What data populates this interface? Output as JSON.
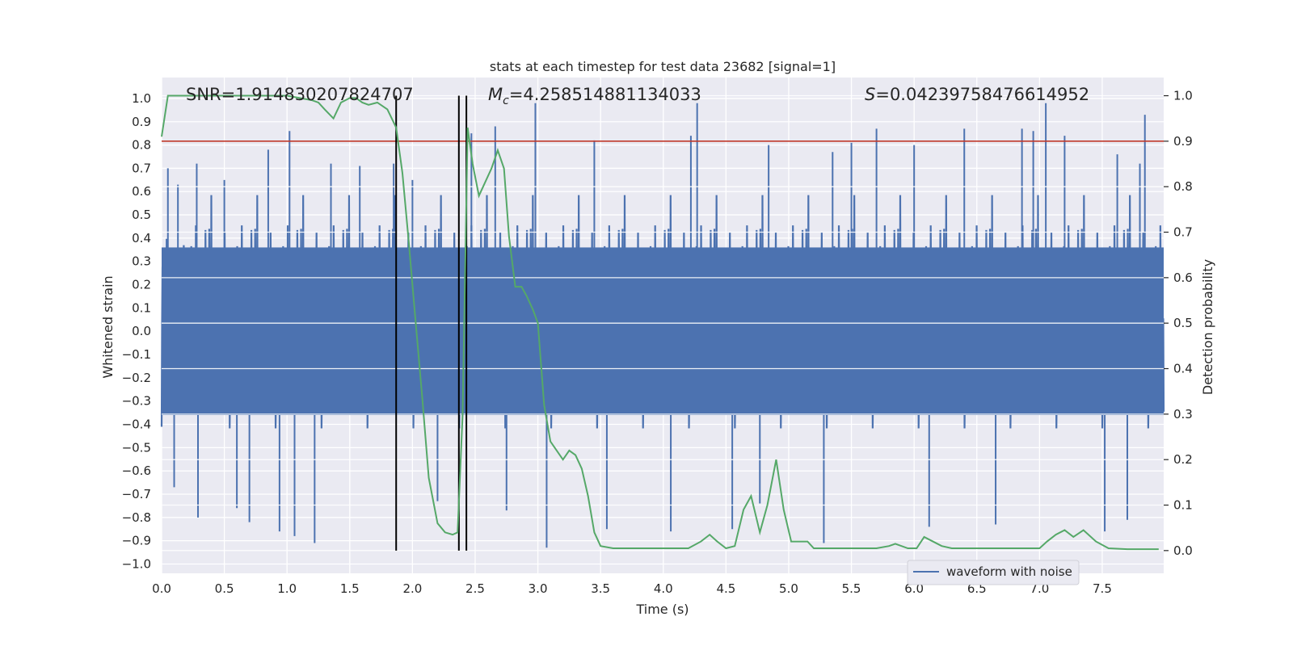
{
  "chart_data": {
    "type": "line",
    "title": "stats at each timestep for test data 23682 [signal=1]",
    "xlabel": "Time (s)",
    "ylabel_left": "Whitened strain",
    "ylabel_right": "Detection probability",
    "xlim": [
      0.0,
      7.99
    ],
    "ylim_left": [
      -1.04,
      1.09
    ],
    "ylim_right": [
      -0.05,
      1.04
    ],
    "x_ticks": [
      0.0,
      0.5,
      1.0,
      1.5,
      2.0,
      2.5,
      3.0,
      3.5,
      4.0,
      4.5,
      5.0,
      5.5,
      6.0,
      6.5,
      7.0,
      7.5
    ],
    "x_tick_labels": [
      "0.0",
      "0.5",
      "1.0",
      "1.5",
      "2.0",
      "2.5",
      "3.0",
      "3.5",
      "4.0",
      "4.5",
      "5.0",
      "5.5",
      "6.0",
      "6.5",
      "7.0",
      "7.5"
    ],
    "y_left_ticks": [
      -1.0,
      -0.9,
      -0.8,
      -0.7,
      -0.6,
      -0.5,
      -0.4,
      -0.3,
      -0.2,
      -0.1,
      0.0,
      0.1,
      0.2,
      0.3,
      0.4,
      0.5,
      0.6,
      0.7,
      0.8,
      0.9,
      1.0
    ],
    "y_left_tick_labels": [
      "−1.0",
      "−0.9",
      "−0.8",
      "−0.7",
      "−0.6",
      "−0.5",
      "−0.4",
      "−0.3",
      "−0.2",
      "−0.1",
      "0.0",
      "0.1",
      "0.2",
      "0.3",
      "0.4",
      "0.5",
      "0.6",
      "0.7",
      "0.8",
      "0.9",
      "1.0"
    ],
    "y_right_ticks": [
      0.0,
      0.1,
      0.2,
      0.3,
      0.4,
      0.5,
      0.6,
      0.7,
      0.8,
      0.9,
      1.0
    ],
    "y_right_tick_labels": [
      "0.0",
      "0.1",
      "0.2",
      "0.3",
      "0.4",
      "0.5",
      "0.6",
      "0.7",
      "0.8",
      "0.9",
      "1.0"
    ],
    "grid": true,
    "legend": {
      "entries": [
        "waveform with noise"
      ],
      "placement": "lower-right"
    },
    "annotations": {
      "snr": {
        "label": "SNR=",
        "value": "1.914830207824707"
      },
      "mc": {
        "symbol": "M",
        "subscript": "c",
        "value": "=4.258514881134033"
      },
      "s": {
        "symbol": "S",
        "value": "=0.04239758476614952"
      }
    },
    "threshold": {
      "axis": "right",
      "value": 0.9,
      "color": "#c0392b"
    },
    "vertical_lines": [
      1.87,
      2.37,
      2.43
    ],
    "waveform": {
      "name": "waveform with noise",
      "color": "#4c72b0",
      "axis": "left",
      "band_sigma": 0.2,
      "peaks": [
        [
          0.05,
          0.7
        ],
        [
          0.1,
          -0.67
        ],
        [
          0.13,
          0.63
        ],
        [
          0.28,
          0.72
        ],
        [
          0.29,
          -0.8
        ],
        [
          0.5,
          0.65
        ],
        [
          0.6,
          -0.76
        ],
        [
          0.7,
          -0.82
        ],
        [
          0.85,
          0.78
        ],
        [
          0.94,
          -0.86
        ],
        [
          1.02,
          0.86
        ],
        [
          1.06,
          -0.88
        ],
        [
          1.22,
          -0.91
        ],
        [
          1.35,
          0.72
        ],
        [
          1.58,
          0.71
        ],
        [
          1.85,
          0.72
        ],
        [
          2.0,
          0.65
        ],
        [
          2.2,
          -0.73
        ],
        [
          2.47,
          0.85
        ],
        [
          2.66,
          0.88
        ],
        [
          2.75,
          -0.77
        ],
        [
          2.98,
          0.98
        ],
        [
          3.07,
          -0.93
        ],
        [
          3.45,
          0.82
        ],
        [
          3.55,
          -0.85
        ],
        [
          4.06,
          -0.86
        ],
        [
          4.22,
          0.84
        ],
        [
          4.27,
          0.98
        ],
        [
          4.55,
          -0.85
        ],
        [
          4.77,
          -0.74
        ],
        [
          4.84,
          0.8
        ],
        [
          5.28,
          -0.91
        ],
        [
          5.35,
          0.77
        ],
        [
          5.5,
          0.81
        ],
        [
          5.7,
          0.87
        ],
        [
          6.0,
          0.8
        ],
        [
          6.12,
          -0.84
        ],
        [
          6.4,
          0.87
        ],
        [
          6.65,
          -0.83
        ],
        [
          6.86,
          0.87
        ],
        [
          6.95,
          0.86
        ],
        [
          7.05,
          0.98
        ],
        [
          7.2,
          0.84
        ],
        [
          7.52,
          -0.86
        ],
        [
          7.62,
          0.76
        ],
        [
          7.7,
          -0.81
        ],
        [
          7.8,
          0.72
        ],
        [
          7.84,
          0.93
        ]
      ]
    },
    "probability": {
      "color": "#55a868",
      "axis": "right",
      "x": [
        0.0,
        0.05,
        0.1,
        0.3,
        0.5,
        0.7,
        0.9,
        1.0,
        1.1,
        1.2,
        1.25,
        1.3,
        1.37,
        1.43,
        1.5,
        1.55,
        1.6,
        1.65,
        1.72,
        1.8,
        1.87,
        1.92,
        1.97,
        2.02,
        2.08,
        2.13,
        2.2,
        2.26,
        2.32,
        2.36,
        2.4,
        2.44,
        2.48,
        2.53,
        2.58,
        2.63,
        2.68,
        2.73,
        2.77,
        2.82,
        2.87,
        2.91,
        2.96,
        3.0,
        3.05,
        3.1,
        3.15,
        3.2,
        3.25,
        3.3,
        3.35,
        3.4,
        3.45,
        3.5,
        3.6,
        3.8,
        4.0,
        4.2,
        4.3,
        4.37,
        4.43,
        4.5,
        4.57,
        4.64,
        4.7,
        4.77,
        4.83,
        4.9,
        4.96,
        5.02,
        5.1,
        5.15,
        5.2,
        5.3,
        5.5,
        5.7,
        5.8,
        5.85,
        5.95,
        6.02,
        6.08,
        6.15,
        6.22,
        6.3,
        6.45,
        6.55,
        6.7,
        6.85,
        7.0,
        7.06,
        7.13,
        7.2,
        7.27,
        7.35,
        7.45,
        7.55,
        7.7,
        7.85,
        7.95
      ],
      "y": [
        0.91,
        1.0,
        1.0,
        1.0,
        1.0,
        1.0,
        1.0,
        1.0,
        0.995,
        0.99,
        0.985,
        0.97,
        0.95,
        0.985,
        0.995,
        0.995,
        0.985,
        0.98,
        0.985,
        0.97,
        0.93,
        0.83,
        0.68,
        0.52,
        0.33,
        0.16,
        0.06,
        0.04,
        0.035,
        0.04,
        0.3,
        0.93,
        0.85,
        0.78,
        0.81,
        0.84,
        0.88,
        0.84,
        0.69,
        0.58,
        0.58,
        0.56,
        0.53,
        0.5,
        0.32,
        0.24,
        0.22,
        0.2,
        0.22,
        0.21,
        0.18,
        0.12,
        0.04,
        0.01,
        0.005,
        0.005,
        0.005,
        0.005,
        0.02,
        0.035,
        0.02,
        0.005,
        0.01,
        0.09,
        0.12,
        0.04,
        0.1,
        0.2,
        0.09,
        0.02,
        0.02,
        0.02,
        0.005,
        0.005,
        0.005,
        0.005,
        0.01,
        0.015,
        0.005,
        0.005,
        0.03,
        0.02,
        0.01,
        0.005,
        0.005,
        0.005,
        0.005,
        0.005,
        0.005,
        0.02,
        0.035,
        0.045,
        0.03,
        0.045,
        0.02,
        0.005,
        0.003,
        0.003,
        0.003
      ]
    }
  }
}
